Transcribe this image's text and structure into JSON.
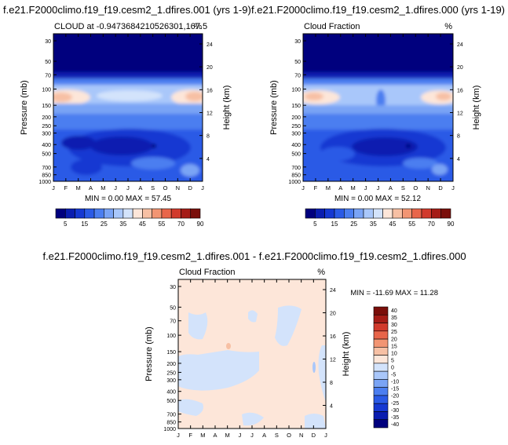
{
  "colors": {
    "full": [
      "#00007e",
      "#0a1db0",
      "#1538d2",
      "#2a5ae6",
      "#4b7ef0",
      "#7aa4f5",
      "#a9c7fa",
      "#d3e3fb",
      "#fde6d9",
      "#f7c0a4",
      "#f29573",
      "#e8654a",
      "#d13a2c",
      "#a51c16",
      "#7a0e0a"
    ],
    "diff": [
      "#00007e",
      "#0a1db0",
      "#1538d2",
      "#2a5ae6",
      "#4b7ef0",
      "#7aa4f5",
      "#a9c7fa",
      "#d3e3fb",
      "#fde6d9",
      "#f7c0a4",
      "#f29573",
      "#e8654a",
      "#d13a2c",
      "#a51c16",
      "#7a0e0a"
    ],
    "diff_low": "#d3e3fb",
    "diff_high": "#fde6d9"
  },
  "chart_data": [
    {
      "type": "heatmap",
      "panel": "top-left",
      "title": "f.e21.F2000climo.f19_f19.cesm2_1.dfires.001 (yrs 1-9)",
      "subtitle_left": "CLOUD at -0.9473684210526301,167.5",
      "subtitle_right": "%",
      "ylabel": "Pressure (mb)",
      "ylabel_right": "Height (km)",
      "minmax_label": "MIN =   0.00 MAX =  57.45",
      "x_ticks": [
        "J",
        "F",
        "M",
        "A",
        "M",
        "J",
        "J",
        "A",
        "S",
        "O",
        "N",
        "D",
        "J"
      ],
      "y_ticks": [
        30,
        50,
        70,
        100,
        150,
        200,
        250,
        300,
        400,
        500,
        700,
        850,
        1000
      ],
      "y_ticks_right": [
        24,
        20,
        16,
        12,
        8,
        4
      ],
      "min": 0.0,
      "max": 57.45
    },
    {
      "type": "heatmap",
      "panel": "top-right",
      "title": "f.e21.F2000climo.f19_f19.cesm2_1.dfires.000 (yrs 1-19)",
      "subtitle_left": "Cloud Fraction",
      "subtitle_right": "%",
      "ylabel": "Pressure (mb)",
      "ylabel_right": "Height (km)",
      "minmax_label": "MIN =   0.00 MAX =  52.12",
      "x_ticks": [
        "J",
        "F",
        "M",
        "A",
        "M",
        "J",
        "J",
        "A",
        "S",
        "O",
        "N",
        "D",
        "J"
      ],
      "y_ticks": [
        30,
        50,
        70,
        100,
        150,
        200,
        250,
        300,
        400,
        500,
        700,
        850,
        1000
      ],
      "y_ticks_right": [
        24,
        20,
        16,
        12,
        8,
        4
      ],
      "min": 0.0,
      "max": 52.12
    },
    {
      "type": "heatmap",
      "panel": "bottom",
      "title": "f.e21.F2000climo.f19_f19.cesm2_1.dfires.001 - f.e21.F2000climo.f19_f19.cesm2_1.dfires.000",
      "subtitle_left": "Cloud Fraction",
      "subtitle_right": "%",
      "ylabel": "Pressure (mb)",
      "ylabel_right": "Height (km)",
      "minmax_label": "MIN = -11.69 MAX =  11.28",
      "x_ticks": [
        "J",
        "F",
        "M",
        "A",
        "M",
        "J",
        "J",
        "A",
        "S",
        "O",
        "N",
        "D",
        "J"
      ],
      "y_ticks": [
        30,
        50,
        70,
        100,
        150,
        200,
        250,
        300,
        400,
        500,
        700,
        850,
        1000
      ],
      "y_ticks_right": [
        24,
        20,
        16,
        12,
        8,
        4
      ],
      "min": -11.69,
      "max": 11.28
    }
  ],
  "colorbar_full": {
    "labels": [
      "5",
      "15",
      "25",
      "35",
      "45",
      "55",
      "70",
      "90"
    ]
  },
  "colorbar_diff": {
    "labels": [
      "40",
      "35",
      "30",
      "25",
      "20",
      "15",
      "10",
      "5",
      "0",
      "-5",
      "-10",
      "-15",
      "-20",
      "-25",
      "-30",
      "-35",
      "-40"
    ]
  }
}
